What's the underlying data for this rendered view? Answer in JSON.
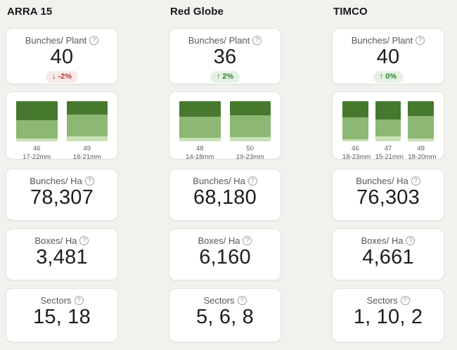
{
  "icons": {
    "help": "?"
  },
  "chart_colors": [
    "#46792e",
    "#8cb873",
    "#c7e0b5"
  ],
  "columns": [
    {
      "title": "ARRA 15",
      "bunches_plant": {
        "label": "Bunches/ Plant",
        "value": "40",
        "arrow": "↓",
        "change": "-2%",
        "direction": "down"
      },
      "chart": {
        "type": "stacked-bar",
        "bars": [
          {
            "value": "46",
            "range": "17-22mm",
            "segments": [
              47,
              46,
              7
            ]
          },
          {
            "value": "49",
            "range": "18-21mm",
            "segments": [
              33,
              55,
              12
            ]
          }
        ]
      },
      "bunches_ha": {
        "label": "Bunches/ Ha",
        "value": "78,307"
      },
      "boxes_ha": {
        "label": "Boxes/ Ha",
        "value": "3,481"
      },
      "sectors": {
        "label": "Sectors",
        "value": "15, 18"
      }
    },
    {
      "title": "Red Globe",
      "bunches_plant": {
        "label": "Bunches/ Plant",
        "value": "36",
        "arrow": "↑",
        "change": "2%",
        "direction": "up"
      },
      "chart": {
        "type": "stacked-bar",
        "bars": [
          {
            "value": "48",
            "range": "14-18mm",
            "segments": [
              39,
              52,
              9
            ]
          },
          {
            "value": "50",
            "range": "19-23mm",
            "segments": [
              35,
              54,
              11
            ]
          }
        ]
      },
      "bunches_ha": {
        "label": "Bunches/ Ha",
        "value": "68,180"
      },
      "boxes_ha": {
        "label": "Boxes/ Ha",
        "value": "6,160"
      },
      "sectors": {
        "label": "Sectors",
        "value": "5, 6, 8"
      }
    },
    {
      "title": "TIMCO",
      "bunches_plant": {
        "label": "Bunches/ Plant",
        "value": "40",
        "arrow": "↑",
        "change": "0%",
        "direction": "up"
      },
      "chart": {
        "type": "stacked-bar",
        "bars": [
          {
            "value": "46",
            "range": "18-23mm",
            "segments": [
              40,
              54,
              6
            ]
          },
          {
            "value": "47",
            "range": "15-21mm",
            "segments": [
              46,
              41,
              13
            ]
          },
          {
            "value": "49",
            "range": "18-20mm",
            "segments": [
              36,
              57,
              7
            ]
          }
        ]
      },
      "bunches_ha": {
        "label": "Bunches/ Ha",
        "value": "76,303"
      },
      "boxes_ha": {
        "label": "Boxes/ Ha",
        "value": "4,661"
      },
      "sectors": {
        "label": "Sectors",
        "value": "1, 10, 2"
      }
    }
  ]
}
